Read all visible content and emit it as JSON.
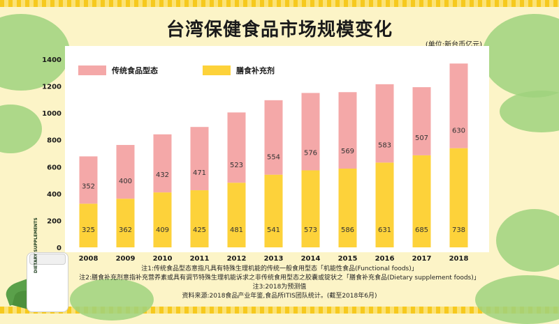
{
  "title": "台湾保健食品市场规模变化",
  "unit": "(单位:新台币亿元)",
  "notes": [
    "注1:传统食品型态意指凡具有特殊生理机能的传统一般食用型态「机能性食品(Functional foods)」",
    "注2:膳食补充剂意指补充营养素或具有调节特殊生理机能诉求之非传统食用型态之胶囊或锭状之「膳食补充食品(Dietary supplement foods)」",
    "注3:2018为预测值",
    "资料来源:2018食品产业年鉴,食品所ITIS团队统计。(截至2018年6月)"
  ],
  "bottle_text": "DIETARY SUPPLEMENTS",
  "colors": {
    "pink": "#f4a8a8",
    "yellow": "#fdd23a",
    "background": "#fcf4c7",
    "green": "#9fd27e"
  },
  "chart_data": {
    "type": "bar",
    "stacked": true,
    "title": "台湾保健食品市场规模变化",
    "categories": [
      "2008",
      "2009",
      "2010",
      "2011",
      "2012",
      "2013",
      "2014",
      "2015",
      "2016",
      "2017",
      "2018"
    ],
    "series": [
      {
        "name": "膳食补充剂",
        "color": "#fdd23a",
        "values": [
          325,
          362,
          409,
          425,
          481,
          541,
          573,
          586,
          631,
          685,
          738
        ]
      },
      {
        "name": "传统食品型态",
        "color": "#f4a8a8",
        "values": [
          352,
          400,
          432,
          471,
          523,
          554,
          576,
          569,
          583,
          507,
          630
        ]
      }
    ],
    "ylim": [
      0,
      1400
    ],
    "yticks": [
      0,
      200,
      400,
      600,
      800,
      1000,
      1200,
      1400
    ],
    "legend": [
      "传统食品型态",
      "膳食补充剂"
    ],
    "grid": false
  }
}
